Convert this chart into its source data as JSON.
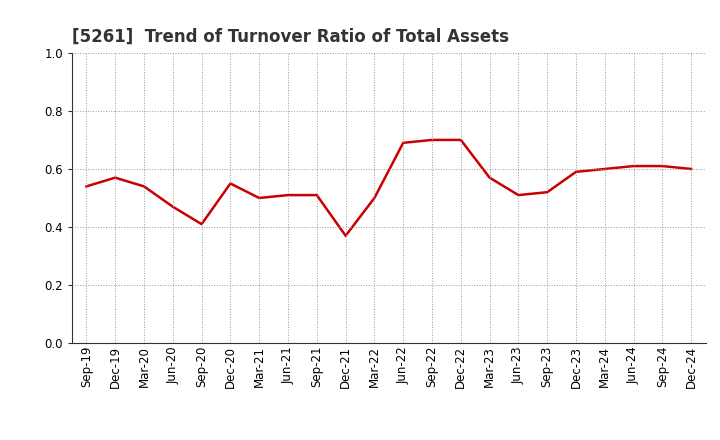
{
  "title": "[5261]  Trend of Turnover Ratio of Total Assets",
  "x_labels": [
    "Sep-19",
    "Dec-19",
    "Mar-20",
    "Jun-20",
    "Sep-20",
    "Dec-20",
    "Mar-21",
    "Jun-21",
    "Sep-21",
    "Dec-21",
    "Mar-22",
    "Jun-22",
    "Sep-22",
    "Dec-22",
    "Mar-23",
    "Jun-23",
    "Sep-23",
    "Dec-23",
    "Mar-24",
    "Jun-24",
    "Sep-24",
    "Dec-24"
  ],
  "y_values": [
    0.54,
    0.57,
    0.54,
    0.47,
    0.41,
    0.55,
    0.5,
    0.51,
    0.51,
    0.37,
    0.5,
    0.69,
    0.7,
    0.7,
    0.57,
    0.51,
    0.52,
    0.59,
    0.6,
    0.61,
    0.61,
    0.6
  ],
  "line_color": "#cc0000",
  "line_width": 1.8,
  "ylim": [
    0.0,
    1.0
  ],
  "yticks": [
    0.0,
    0.2,
    0.4,
    0.6,
    0.8,
    1.0
  ],
  "background_color": "#ffffff",
  "grid_color": "#999999",
  "title_fontsize": 12,
  "tick_fontsize": 8.5,
  "title_color": "#333333"
}
